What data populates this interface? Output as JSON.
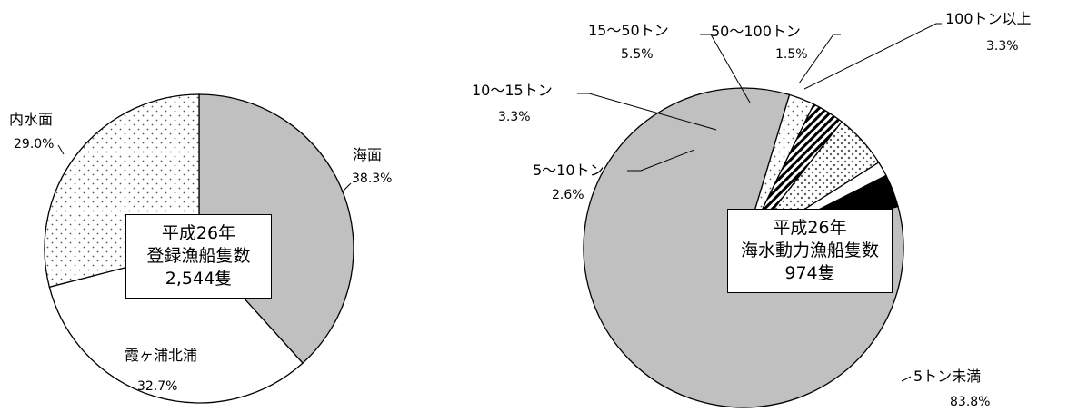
{
  "chart_data": [
    {
      "type": "pie",
      "center_box": [
        "平成26年",
        "登録漁船隻数",
        "2,544隻"
      ],
      "slices": [
        {
          "label": "海面",
          "value": 38.3,
          "pct_text": "38.3%",
          "color": "#c0c0c0",
          "pattern": "solid"
        },
        {
          "label": "霞ヶ浦北浦",
          "value": 32.7,
          "pct_text": "32.7%",
          "color": "#ffffff",
          "pattern": "solid"
        },
        {
          "label": "内水面",
          "value": 29.0,
          "pct_text": "29.0%",
          "color": "#ffffff",
          "pattern": "dots"
        }
      ]
    },
    {
      "type": "pie",
      "center_box": [
        "平成26年",
        "海水動力漁船隻数",
        "974隻"
      ],
      "slices": [
        {
          "label": "5トン未満",
          "value": 83.8,
          "pct_text": "83.8%",
          "color": "#c0c0c0",
          "pattern": "solid"
        },
        {
          "label": "5～10トン",
          "value": 2.6,
          "pct_text": "2.6%",
          "color": "#ffffff",
          "pattern": "dots"
        },
        {
          "label": "10～15トン",
          "value": 3.3,
          "pct_text": "3.3%",
          "color": "#ffffff",
          "pattern": "diagonal"
        },
        {
          "label": "15～50トン",
          "value": 5.5,
          "pct_text": "5.5%",
          "color": "#ffffff",
          "pattern": "crosses"
        },
        {
          "label": "50～100トン",
          "value": 1.5,
          "pct_text": "1.5%",
          "color": "#ffffff",
          "pattern": "solid"
        },
        {
          "label": "100トン以上",
          "value": 3.3,
          "pct_text": "3.3%",
          "color": "#000000",
          "pattern": "solid"
        }
      ]
    }
  ]
}
